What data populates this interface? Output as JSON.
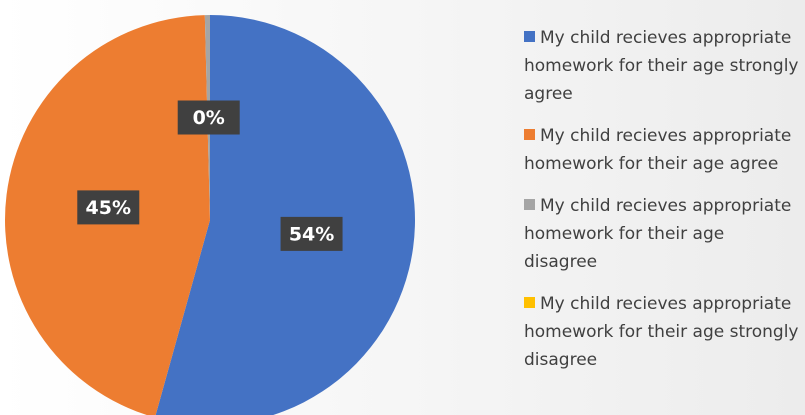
{
  "chart_data": {
    "type": "pie",
    "categories": [
      "My child recieves appropriate homework for their age strongly agree",
      "My child recieves appropriate homework for their age agree",
      "My child recieves appropriate homework for their age disagree",
      "My child recieves appropriate homework for their age strongly disagree"
    ],
    "values": [
      54,
      45,
      0.4,
      0
    ],
    "value_labels": [
      "54%",
      "45%",
      "0%",
      null
    ],
    "colors": [
      "#4472c4",
      "#ed7d31",
      "#a5a5a5",
      "#ffc000"
    ],
    "legend": "right"
  }
}
